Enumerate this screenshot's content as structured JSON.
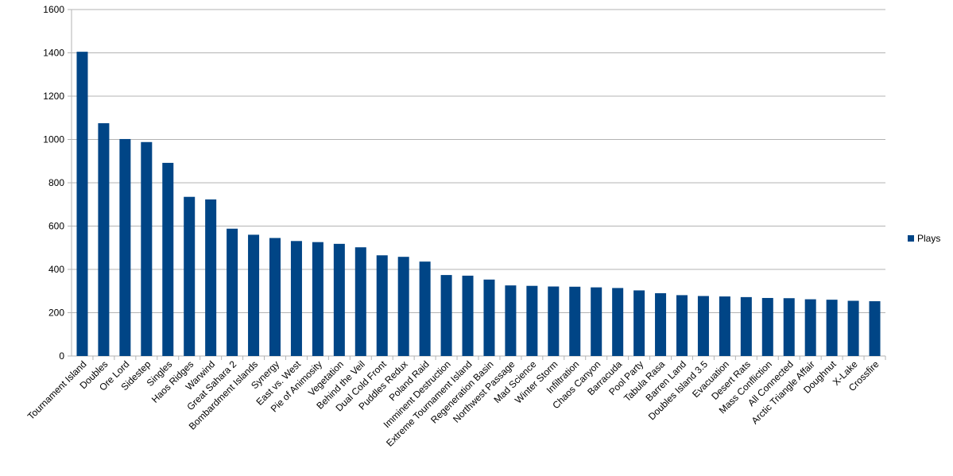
{
  "chart_data": {
    "type": "bar",
    "title": "",
    "xlabel": "",
    "ylabel": "",
    "ylim": [
      0,
      1600
    ],
    "yticks": [
      0,
      200,
      400,
      600,
      800,
      1000,
      1200,
      1400,
      1600
    ],
    "grid": true,
    "legend_position": "right",
    "bar_color": "#004586",
    "categories": [
      "Tournament Island",
      "Doubles",
      "Ore Lord",
      "Sidestep",
      "Singles",
      "Haos Ridges",
      "Warwind",
      "Great Sahara 2",
      "Bombardment Islands",
      "Synergy",
      "East vs. West",
      "Pie of Animosity",
      "Vegetation",
      "Behind the Veil",
      "Dual Cold Front",
      "Puddles Redux",
      "Poland Raid",
      "Imminent Destruction",
      "Extreme Tournament Island",
      "Regeneration Basin",
      "Northwest Passage",
      "Mad Science",
      "Winter Storm",
      "Infiltration",
      "Chaos Canyon",
      "Barracuda",
      "Pool Party",
      "Tabula Rasa",
      "Barren Land",
      "Doubles Island 3.5",
      "Evacuation",
      "Desert Rats",
      "Mass Confliction",
      "All Connected",
      "Arctic Triangle Affair",
      "Doughnut",
      "X-Lake",
      "Crossfire"
    ],
    "series": [
      {
        "name": "Plays",
        "values": [
          1405,
          1075,
          1002,
          988,
          892,
          735,
          723,
          588,
          560,
          545,
          531,
          526,
          518,
          502,
          465,
          458,
          436,
          374,
          371,
          353,
          326,
          324,
          321,
          320,
          317,
          314,
          303,
          290,
          281,
          277,
          275,
          272,
          268,
          267,
          262,
          260,
          255,
          253
        ]
      }
    ]
  }
}
